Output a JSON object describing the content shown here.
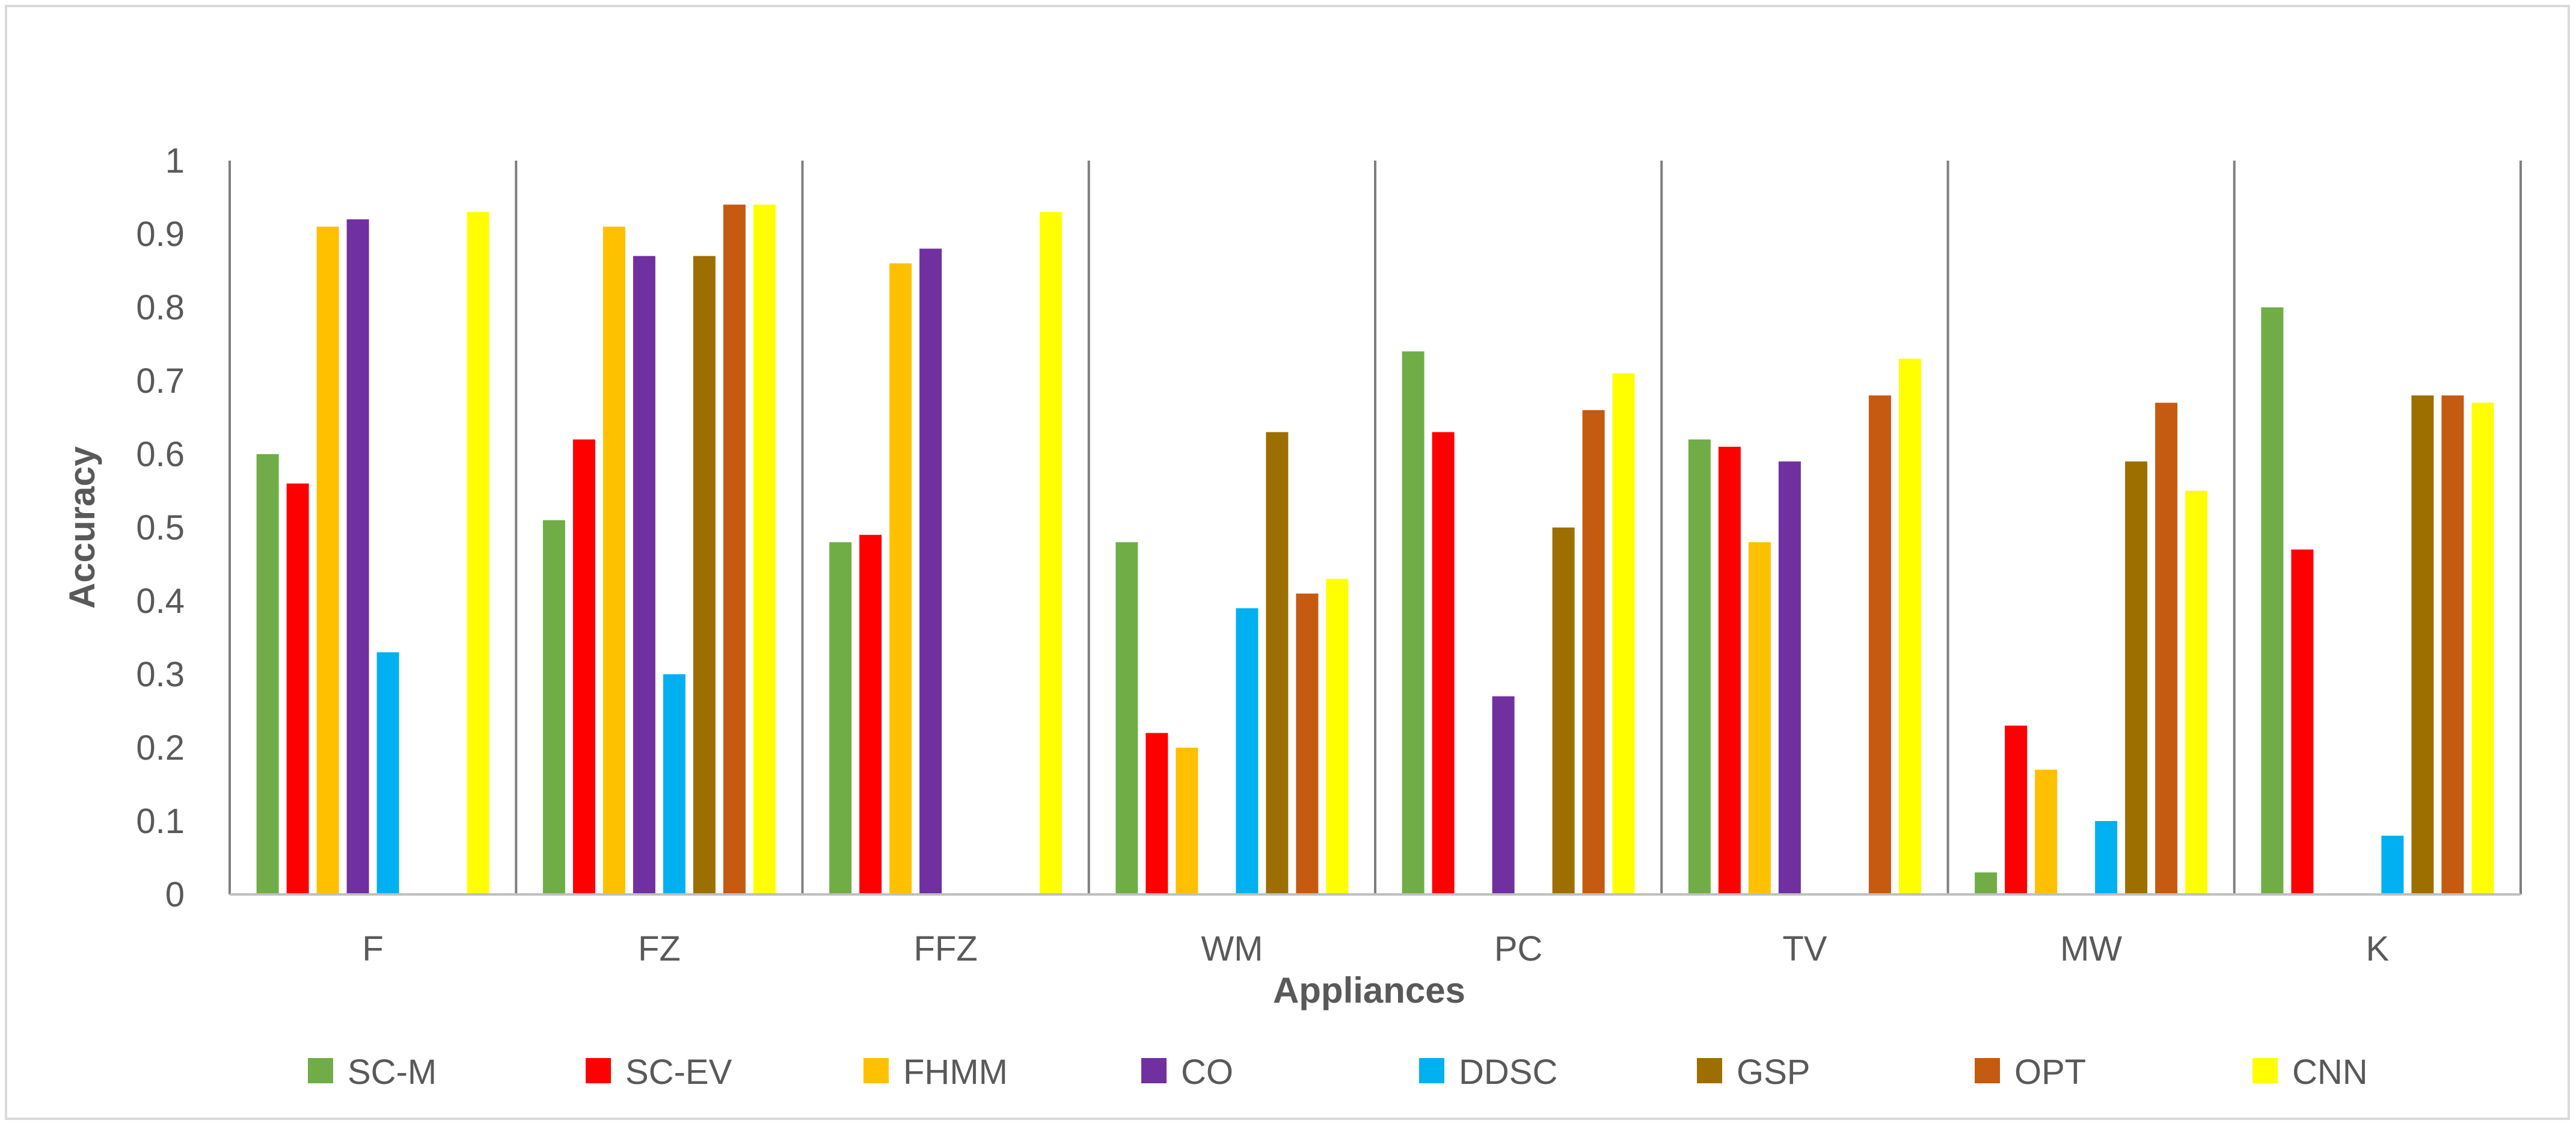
{
  "chart_data": {
    "type": "bar",
    "title": "",
    "xlabel": "Appliances",
    "ylabel": "Accuracy",
    "ylim": [
      0,
      1
    ],
    "yticks": [
      "0",
      "0.1",
      "0.2",
      "0.3",
      "0.4",
      "0.5",
      "0.6",
      "0.7",
      "0.8",
      "0.9",
      "1"
    ],
    "grid": false,
    "category_separators": true,
    "legend_position": "bottom",
    "categories": [
      "F",
      "FZ",
      "FFZ",
      "WM",
      "PC",
      "TV",
      "MW",
      "K"
    ],
    "series": [
      {
        "name": "SC-M",
        "color": "#70ad47",
        "values": [
          0.6,
          0.51,
          0.48,
          0.48,
          0.74,
          0.62,
          0.03,
          0.8
        ]
      },
      {
        "name": "SC-EV",
        "color": "#ff0000",
        "values": [
          0.56,
          0.62,
          0.49,
          0.22,
          0.63,
          0.61,
          0.23,
          0.47
        ]
      },
      {
        "name": "FHMM",
        "color": "#ffc000",
        "values": [
          0.91,
          0.91,
          0.86,
          0.2,
          0,
          0.48,
          0.17,
          0
        ]
      },
      {
        "name": "CO",
        "color": "#7030a0",
        "values": [
          0.92,
          0.87,
          0.88,
          0,
          0.27,
          0.59,
          0,
          0
        ]
      },
      {
        "name": "DDSC",
        "color": "#00b0f0",
        "values": [
          0.33,
          0.3,
          0,
          0.39,
          0,
          0,
          0.1,
          0.08
        ]
      },
      {
        "name": "GSP",
        "color": "#9c6f00",
        "values": [
          0,
          0.87,
          0,
          0.63,
          0.5,
          0,
          0.59,
          0.68
        ]
      },
      {
        "name": "OPT",
        "color": "#c55a11",
        "values": [
          0,
          0.94,
          0,
          0.41,
          0.66,
          0.68,
          0.67,
          0.68
        ]
      },
      {
        "name": "CNN",
        "color": "#ffff00",
        "values": [
          0.93,
          0.94,
          0.93,
          0.43,
          0.71,
          0.73,
          0.55,
          0.67
        ]
      }
    ]
  }
}
